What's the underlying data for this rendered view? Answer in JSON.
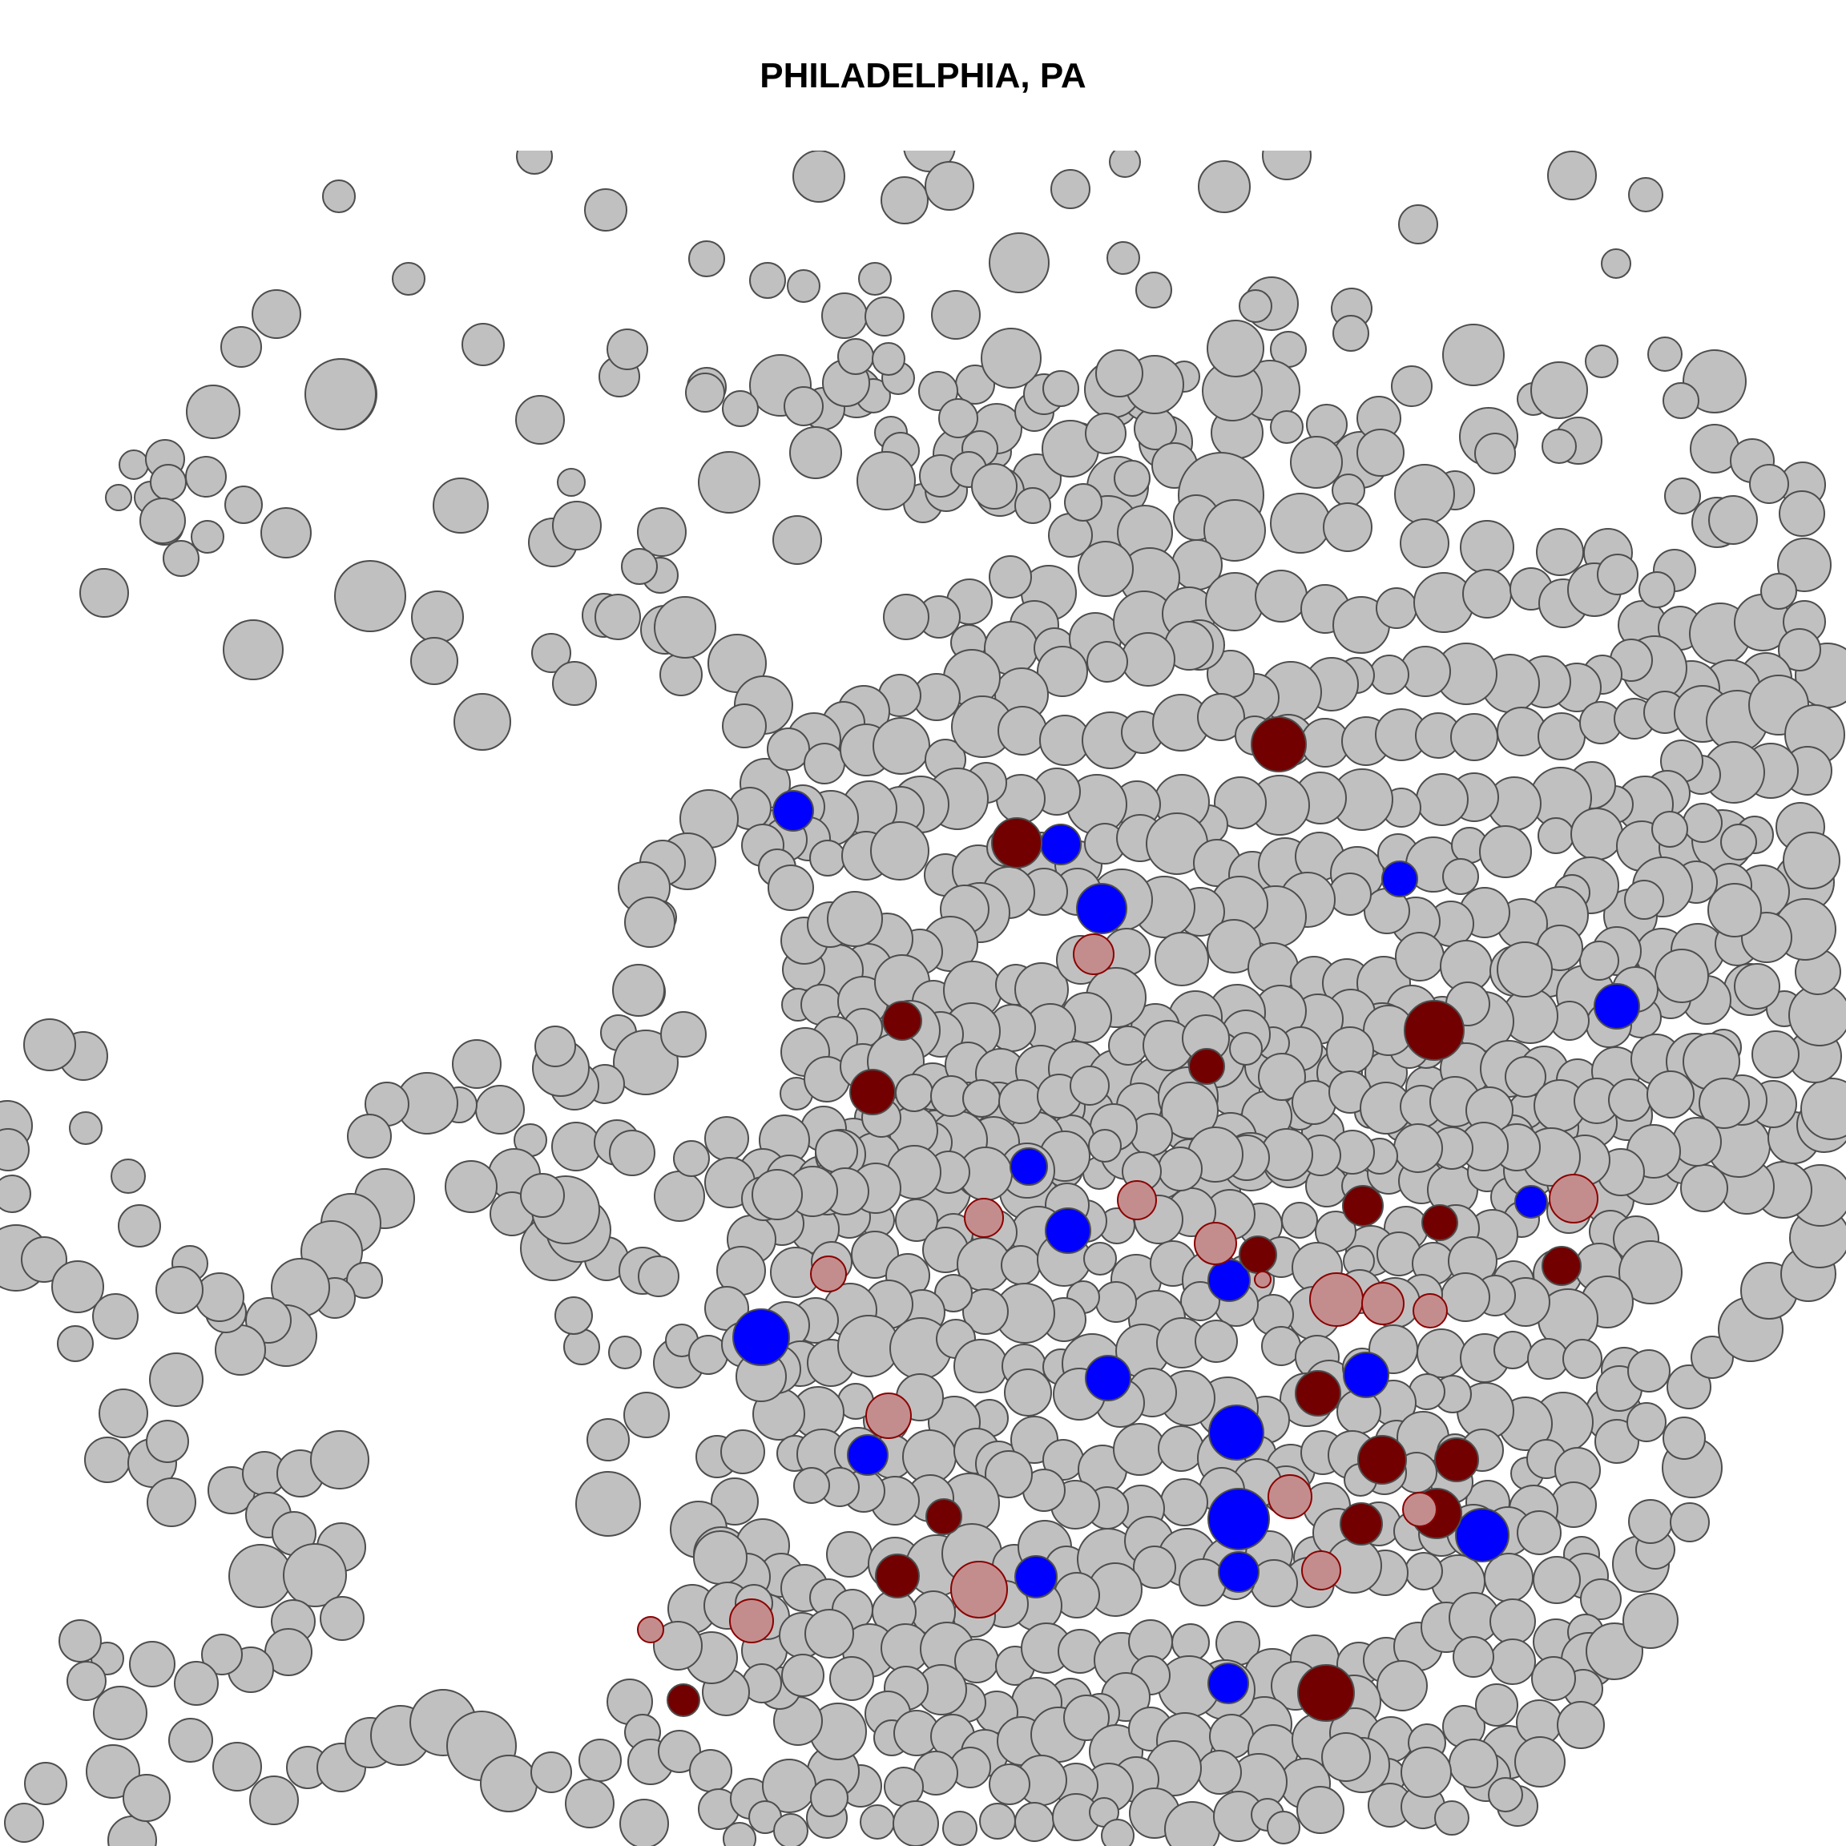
{
  "title": "PHILADELPHIA, PA",
  "map": {
    "type": "circle-cartogram",
    "colors": {
      "background": "#ffffff",
      "neutral": "#c0c0c0",
      "neutral_stroke": "#4d4d4d",
      "blue": "#0000ff",
      "dark_red": "#730000",
      "light_red": "#c48d8d",
      "red_stroke": "#8b0000"
    },
    "legend": "none"
  }
}
